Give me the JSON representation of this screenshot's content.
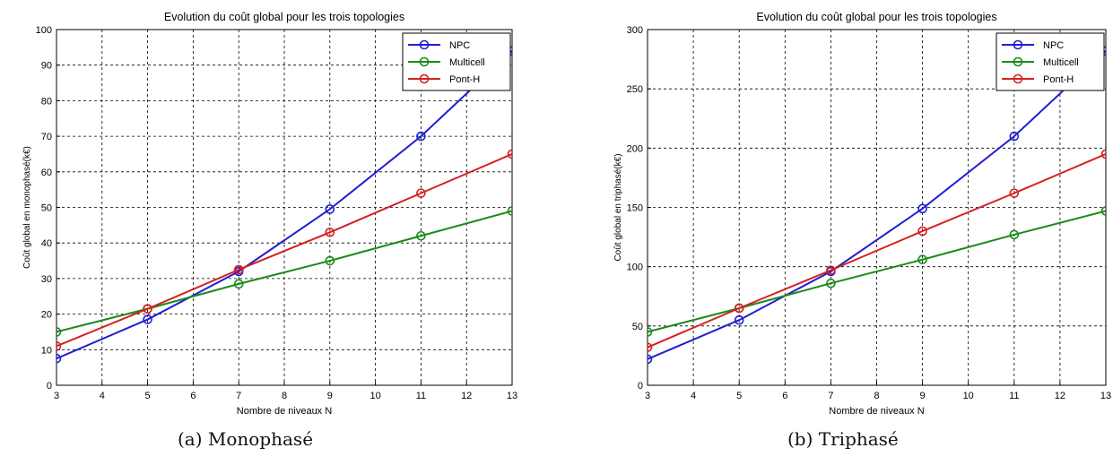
{
  "chart_data": [
    {
      "type": "line",
      "title": "Evolution du coût global pour les trois topologies",
      "xlabel": "Nombre de niveaux N",
      "ylabel": "Coût global en monophasé(k€)",
      "caption": "(a) Monophasé",
      "xlim": [
        3,
        13
      ],
      "ylim": [
        0,
        100
      ],
      "xticks": [
        "3",
        "4",
        "5",
        "6",
        "7",
        "8",
        "9",
        "10",
        "11",
        "12",
        "13"
      ],
      "yticks": [
        "0",
        "10",
        "20",
        "30",
        "40",
        "50",
        "60",
        "70",
        "80",
        "90",
        "100"
      ],
      "x": [
        3,
        5,
        7,
        9,
        11,
        13
      ],
      "grid": true,
      "legend_position": "top-right",
      "series": [
        {
          "name": "NPC",
          "color": "#1f1fd1",
          "values": [
            7.5,
            18.5,
            32,
            49.5,
            70,
            94
          ]
        },
        {
          "name": "Multicell",
          "color": "#1a8a1a",
          "values": [
            15,
            21.5,
            28.5,
            35,
            42,
            49
          ]
        },
        {
          "name": "Pont-H",
          "color": "#d42020",
          "values": [
            11,
            21.5,
            32.5,
            43,
            54,
            65
          ]
        }
      ]
    },
    {
      "type": "line",
      "title": "Evolution du coût global pour les trois topologies",
      "xlabel": "Nombre de niveaux N",
      "ylabel": "Coût global en triphasé(k€)",
      "caption": "(b) Triphasé",
      "xlim": [
        3,
        13
      ],
      "ylim": [
        0,
        300
      ],
      "xticks": [
        "3",
        "4",
        "5",
        "6",
        "7",
        "8",
        "9",
        "10",
        "11",
        "12",
        "13"
      ],
      "yticks": [
        "0",
        "50",
        "100",
        "150",
        "200",
        "250",
        "300"
      ],
      "x": [
        3,
        5,
        7,
        9,
        11,
        13
      ],
      "grid": true,
      "legend_position": "top-right",
      "series": [
        {
          "name": "NPC",
          "color": "#1f1fd1",
          "values": [
            22,
            55,
            96,
            149,
            210,
            282
          ]
        },
        {
          "name": "Multicell",
          "color": "#1a8a1a",
          "values": [
            45,
            65,
            86,
            106,
            127,
            147
          ]
        },
        {
          "name": "Pont-H",
          "color": "#d42020",
          "values": [
            32,
            65,
            97,
            130,
            162,
            195
          ]
        }
      ]
    }
  ]
}
